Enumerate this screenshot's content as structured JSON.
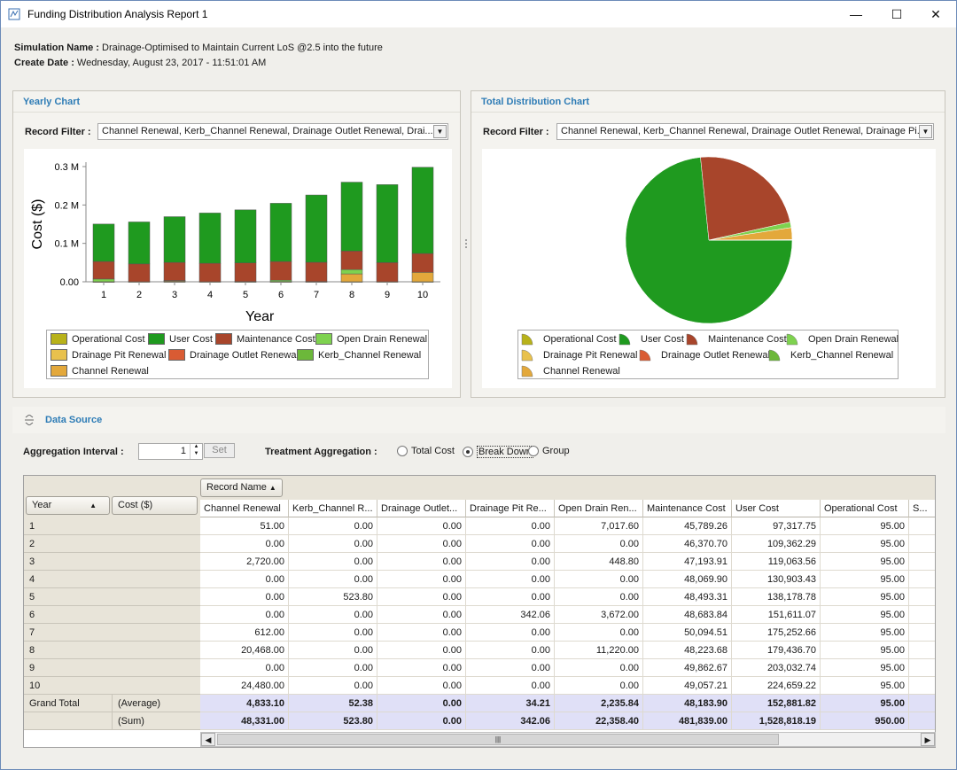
{
  "window": {
    "title": "Funding Distribution Analysis Report 1"
  },
  "info": {
    "sim_label": "Simulation Name :",
    "sim_value": "Drainage-Optimised to Maintain Current LoS @2.5 into the future",
    "date_label": "Create Date :",
    "date_value": "Wednesday, August 23, 2017 - 11:51:01 AM"
  },
  "yearly": {
    "title": "Yearly Chart",
    "filter_label": "Record Filter :",
    "filter_value": "Channel Renewal, Kerb_Channel Renewal, Drainage Outlet Renewal, Drai..."
  },
  "total": {
    "title": "Total Distribution Chart",
    "filter_label": "Record Filter :",
    "filter_value": "Channel Renewal, Kerb_Channel Renewal, Drainage Outlet Renewal, Drainage Pi..."
  },
  "legend": [
    {
      "name": "Operational Cost",
      "color": "#b8b21a"
    },
    {
      "name": "User Cost",
      "color": "#1f9a1f"
    },
    {
      "name": "Maintenance Cost",
      "color": "#a8452b"
    },
    {
      "name": "Open Drain Renewal",
      "color": "#7ed24f"
    },
    {
      "name": "Drainage Pit Renewal",
      "color": "#e8c14d"
    },
    {
      "name": "Drainage Outlet Renewal",
      "color": "#d95b33"
    },
    {
      "name": "Kerb_Channel Renewal",
      "color": "#6cb83a"
    },
    {
      "name": "Channel Renewal",
      "color": "#e3a83b"
    }
  ],
  "chart_data": [
    {
      "type": "bar",
      "stacked": true,
      "xlabel": "Year",
      "ylabel": "Cost ($)",
      "categories": [
        "1",
        "2",
        "3",
        "4",
        "5",
        "6",
        "7",
        "8",
        "9",
        "10"
      ],
      "yticks": [
        "0.00",
        "0.1 M",
        "0.2 M",
        "0.3 M"
      ],
      "ylim": [
        0,
        300000
      ],
      "series": [
        {
          "name": "Channel Renewal",
          "values": [
            51,
            0,
            2720,
            0,
            0,
            0,
            612,
            20468,
            0,
            24480
          ]
        },
        {
          "name": "Kerb_Channel Renewal",
          "values": [
            0,
            0,
            0,
            0,
            523.8,
            0,
            0,
            0,
            0,
            0
          ]
        },
        {
          "name": "Drainage Outlet Renewal",
          "values": [
            0,
            0,
            0,
            0,
            0,
            0,
            0,
            0,
            0,
            0
          ]
        },
        {
          "name": "Drainage Pit Renewal",
          "values": [
            0,
            0,
            0,
            0,
            0,
            342.06,
            0,
            0,
            0,
            0
          ]
        },
        {
          "name": "Open Drain Renewal",
          "values": [
            7017.6,
            0,
            448.8,
            0,
            0,
            3672,
            0,
            11220,
            0,
            0
          ]
        },
        {
          "name": "Maintenance Cost",
          "values": [
            45789.26,
            46370.7,
            47193.91,
            48069.9,
            48493.31,
            48683.84,
            50094.51,
            48223.68,
            49862.67,
            49057.21
          ]
        },
        {
          "name": "User Cost",
          "values": [
            97317.75,
            109362.29,
            119063.56,
            130903.43,
            138178.78,
            151611.07,
            175252.66,
            179436.7,
            203032.74,
            224659.22
          ]
        },
        {
          "name": "Operational Cost",
          "values": [
            95,
            95,
            95,
            95,
            95,
            95,
            95,
            95,
            95,
            95
          ]
        }
      ]
    },
    {
      "type": "pie",
      "slices": [
        {
          "name": "User Cost",
          "value": 1528818.19
        },
        {
          "name": "Maintenance Cost",
          "value": 481839.0
        },
        {
          "name": "Channel Renewal",
          "value": 48331.0
        },
        {
          "name": "Open Drain Renewal",
          "value": 22358.4
        },
        {
          "name": "Operational Cost",
          "value": 950.0
        },
        {
          "name": "Kerb_Channel Renewal",
          "value": 523.8
        },
        {
          "name": "Drainage Pit Renewal",
          "value": 342.06
        },
        {
          "name": "Drainage Outlet Renewal",
          "value": 0.0
        }
      ]
    }
  ],
  "datasource": {
    "title": "Data Source",
    "agg_label": "Aggregation Interval :",
    "agg_value": "1",
    "set": "Set",
    "treat_label": "Treatment Aggregation :",
    "radios": [
      "Total Cost",
      "Break Down",
      "Group"
    ],
    "selected": "Break Down"
  },
  "grid": {
    "record_name": "Record Name",
    "year": "Year",
    "cost": "Cost ($)",
    "columns": [
      "Channel Renewal",
      "Kerb_Channel R...",
      "Drainage Outlet...",
      "Drainage Pit Re...",
      "Open Drain Ren...",
      "Maintenance Cost",
      "User Cost",
      "Operational Cost",
      "S..."
    ],
    "rows": [
      {
        "year": "1",
        "cells": [
          "51.00",
          "0.00",
          "0.00",
          "0.00",
          "7,017.60",
          "45,789.26",
          "97,317.75",
          "95.00"
        ]
      },
      {
        "year": "2",
        "cells": [
          "0.00",
          "0.00",
          "0.00",
          "0.00",
          "0.00",
          "46,370.70",
          "109,362.29",
          "95.00"
        ]
      },
      {
        "year": "3",
        "cells": [
          "2,720.00",
          "0.00",
          "0.00",
          "0.00",
          "448.80",
          "47,193.91",
          "119,063.56",
          "95.00"
        ]
      },
      {
        "year": "4",
        "cells": [
          "0.00",
          "0.00",
          "0.00",
          "0.00",
          "0.00",
          "48,069.90",
          "130,903.43",
          "95.00"
        ]
      },
      {
        "year": "5",
        "cells": [
          "0.00",
          "523.80",
          "0.00",
          "0.00",
          "0.00",
          "48,493.31",
          "138,178.78",
          "95.00"
        ]
      },
      {
        "year": "6",
        "cells": [
          "0.00",
          "0.00",
          "0.00",
          "342.06",
          "3,672.00",
          "48,683.84",
          "151,611.07",
          "95.00"
        ]
      },
      {
        "year": "7",
        "cells": [
          "612.00",
          "0.00",
          "0.00",
          "0.00",
          "0.00",
          "50,094.51",
          "175,252.66",
          "95.00"
        ]
      },
      {
        "year": "8",
        "cells": [
          "20,468.00",
          "0.00",
          "0.00",
          "0.00",
          "11,220.00",
          "48,223.68",
          "179,436.70",
          "95.00"
        ]
      },
      {
        "year": "9",
        "cells": [
          "0.00",
          "0.00",
          "0.00",
          "0.00",
          "0.00",
          "49,862.67",
          "203,032.74",
          "95.00"
        ]
      },
      {
        "year": "10",
        "cells": [
          "24,480.00",
          "0.00",
          "0.00",
          "0.00",
          "0.00",
          "49,057.21",
          "224,659.22",
          "95.00"
        ]
      }
    ],
    "grand_total": "Grand Total",
    "avg_label": "(Average)",
    "avg": [
      "4,833.10",
      "52.38",
      "0.00",
      "34.21",
      "2,235.84",
      "48,183.90",
      "152,881.82",
      "95.00"
    ],
    "sum_label": "(Sum)",
    "sum": [
      "48,331.00",
      "523.80",
      "0.00",
      "342.06",
      "22,358.40",
      "481,839.00",
      "1,528,818.19",
      "950.00"
    ]
  }
}
